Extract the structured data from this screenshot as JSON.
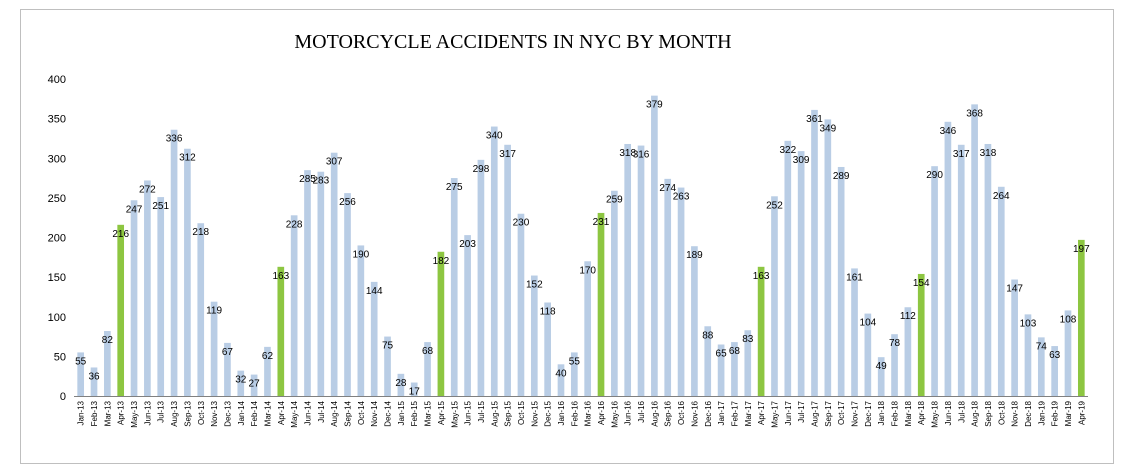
{
  "chart_data": {
    "type": "bar",
    "title": "MOTORCYCLE ACCIDENTS IN NYC BY MONTH",
    "xlabel": "",
    "ylabel": "",
    "ylim": [
      0,
      400
    ],
    "yticks": [
      "0",
      "50",
      "100",
      "150",
      "200",
      "250",
      "300",
      "350",
      "400"
    ],
    "grid": false,
    "legend": "none",
    "colors": {
      "default": "#b9cde5",
      "highlight": "#8dc641",
      "axis": "#808080"
    },
    "categories": [
      "Jan-13",
      "Feb-13",
      "Mar-13",
      "Apr-13",
      "May-13",
      "Jun-13",
      "Jul-13",
      "Aug-13",
      "Sep-13",
      "Oct-13",
      "Nov-13",
      "Dec-13",
      "Jan-14",
      "Feb-14",
      "Mar-14",
      "Apr-14",
      "May-14",
      "Jun-14",
      "Jul-14",
      "Aug-14",
      "Sep-14",
      "Oct-14",
      "Nov-14",
      "Dec-14",
      "Jan-15",
      "Feb-15",
      "Mar-15",
      "Apr-15",
      "May-15",
      "Jun-15",
      "Jul-15",
      "Aug-15",
      "Sep-15",
      "Oct-15",
      "Nov-15",
      "Dec-15",
      "Jan-16",
      "Feb-16",
      "Mar-16",
      "Apr-16",
      "May-16",
      "Jun-16",
      "Jul-16",
      "Aug-16",
      "Sep-16",
      "Oct-16",
      "Nov-16",
      "Dec-16",
      "Jan-17",
      "Feb-17",
      "Mar-17",
      "Apr-17",
      "May-17",
      "Jun-17",
      "Jul-17",
      "Aug-17",
      "Sep-17",
      "Oct-17",
      "Nov-17",
      "Dec-17",
      "Jan-18",
      "Feb-18",
      "Mar-18",
      "Apr-18",
      "May-18",
      "Jun-18",
      "Jul-18",
      "Aug-18",
      "Sep-18",
      "Oct-18",
      "Nov-18",
      "Dec-18",
      "Jan-19",
      "Feb-19",
      "Mar-19",
      "Apr-19"
    ],
    "values": [
      55,
      36,
      82,
      216,
      247,
      272,
      251,
      336,
      312,
      218,
      119,
      67,
      32,
      27,
      62,
      163,
      228,
      285,
      283,
      307,
      256,
      190,
      144,
      75,
      28,
      17,
      68,
      182,
      275,
      203,
      298,
      340,
      317,
      230,
      152,
      118,
      40,
      55,
      170,
      231,
      259,
      318,
      316,
      379,
      274,
      263,
      189,
      88,
      65,
      68,
      83,
      163,
      252,
      322,
      309,
      361,
      349,
      289,
      161,
      104,
      49,
      78,
      112,
      154,
      290,
      346,
      317,
      368,
      318,
      264,
      147,
      103,
      74,
      63,
      108,
      197
    ],
    "highlight": [
      false,
      false,
      false,
      true,
      false,
      false,
      false,
      false,
      false,
      false,
      false,
      false,
      false,
      false,
      false,
      true,
      false,
      false,
      false,
      false,
      false,
      false,
      false,
      false,
      false,
      false,
      false,
      true,
      false,
      false,
      false,
      false,
      false,
      false,
      false,
      false,
      false,
      false,
      false,
      true,
      false,
      false,
      false,
      false,
      false,
      false,
      false,
      false,
      false,
      false,
      false,
      true,
      false,
      false,
      false,
      false,
      false,
      false,
      false,
      false,
      false,
      false,
      false,
      true,
      false,
      false,
      false,
      false,
      false,
      false,
      false,
      false,
      false,
      false,
      false,
      true
    ]
  }
}
